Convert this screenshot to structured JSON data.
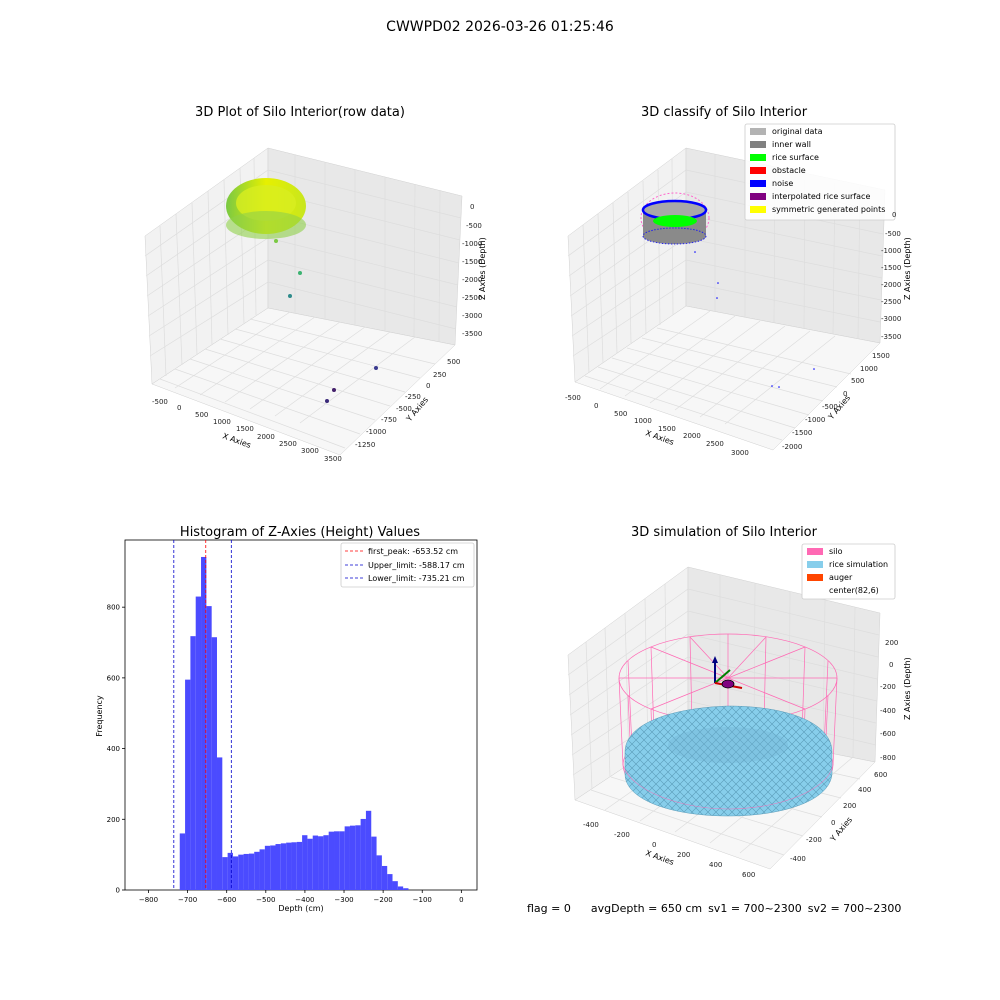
{
  "figure_title": "CWWPD02 2026-03-26 01:25:46",
  "status": {
    "flag": "flag = 0",
    "avg_depth": "avgDepth = 650 cm",
    "sv1": "sv1 = 700~2300",
    "sv2": "sv2 = 700~2300"
  },
  "colors": {
    "histogram_bar": "#4b4bff",
    "first_peak_line": "#ff0000",
    "limit_line": "#0000cc",
    "original_data": "#b3b3b3",
    "inner_wall": "#808080",
    "rice_surface": "#00ff00",
    "obstacle": "#ff0000",
    "noise": "#0000ff",
    "interpolated": "#800080",
    "symmetric": "#ffff00",
    "silo": "#ff69b4",
    "rice_simulation": "#87ceeb",
    "auger": "#ff4500"
  },
  "chart_data": [
    {
      "type": "scatter",
      "subtype": "3d",
      "title": "3D Plot of Silo Interior(row data)",
      "xlabel": "X Axies",
      "ylabel": "Y Axies",
      "zlabel": "Z Axies (Depth)",
      "x_ticks": [
        "-500",
        "0",
        "500",
        "1000",
        "1500",
        "2000",
        "2500",
        "3000",
        "3500"
      ],
      "y_ticks": [
        "500",
        "250",
        "0",
        "-250",
        "-500",
        "-750",
        "-1000",
        "-1250"
      ],
      "z_ticks": [
        "0",
        "-500",
        "-1000",
        "-1500",
        "-2000",
        "-2500",
        "-3000",
        "-3500"
      ]
    },
    {
      "type": "scatter",
      "subtype": "3d",
      "title": "3D classify of Silo Interior",
      "xlabel": "X Axies",
      "ylabel": "Y Axies",
      "zlabel": "Z Axies (Depth)",
      "x_ticks": [
        "-500",
        "0",
        "500",
        "1000",
        "1500",
        "2000",
        "2500",
        "3000"
      ],
      "y_ticks": [
        "1500",
        "1000",
        "500",
        "0",
        "-500",
        "-1000",
        "-1500",
        "-2000"
      ],
      "z_ticks": [
        "0",
        "-500",
        "-1000",
        "-1500",
        "-2000",
        "-2500",
        "-3000",
        "-3500"
      ],
      "legend": [
        "original data",
        "inner wall",
        "rice surface",
        "obstacle",
        "noise",
        "interpolated rice surface",
        "symmetric generated points"
      ],
      "legend_placement": "top-right"
    },
    {
      "type": "bar",
      "subtype": "histogram",
      "title": "Histogram of Z-Axies (Height) Values",
      "xlabel": "Depth (cm)",
      "ylabel": "Frequency",
      "xlim": [
        -860,
        40
      ],
      "ylim": [
        0,
        990
      ],
      "x_ticks": [
        -800,
        -700,
        -600,
        -500,
        -400,
        -300,
        -200,
        -100,
        0
      ],
      "y_ticks": [
        0,
        200,
        400,
        600,
        800
      ],
      "bin_width": 13.6,
      "bin_start": -720,
      "values": [
        160,
        595,
        718,
        830,
        942,
        803,
        715,
        375,
        93,
        105,
        95,
        100,
        102,
        103,
        108,
        115,
        125,
        126,
        130,
        132,
        134,
        135,
        136,
        155,
        145,
        154,
        152,
        155,
        165,
        166,
        166,
        180,
        182,
        183,
        201,
        224,
        151,
        98,
        68,
        45,
        25,
        10,
        5
      ],
      "vlines": [
        {
          "label": "first_peak: -653.52 cm",
          "x": -653.52,
          "style": "first_peak"
        },
        {
          "label": "Upper_limit: -588.17 cm",
          "x": -588.17,
          "style": "limit"
        },
        {
          "label": "Lower_limit: -735.21 cm",
          "x": -735.21,
          "style": "limit"
        }
      ],
      "legend_placement": "top-right"
    },
    {
      "type": "scatter",
      "subtype": "3d",
      "title": "3D simulation of Silo Interior",
      "xlabel": "X Axies",
      "ylabel": "Y Axies",
      "zlabel": "Z Axies (Depth)",
      "x_ticks": [
        "-400",
        "-200",
        "0",
        "200",
        "400",
        "600"
      ],
      "y_ticks": [
        "600",
        "400",
        "200",
        "0",
        "-200",
        "-400"
      ],
      "z_ticks": [
        "200",
        "0",
        "-200",
        "-400",
        "-600",
        "-800"
      ],
      "legend": [
        "silo",
        "rice simulation",
        "auger",
        "center(82,6)"
      ],
      "legend_placement": "top-right"
    }
  ]
}
